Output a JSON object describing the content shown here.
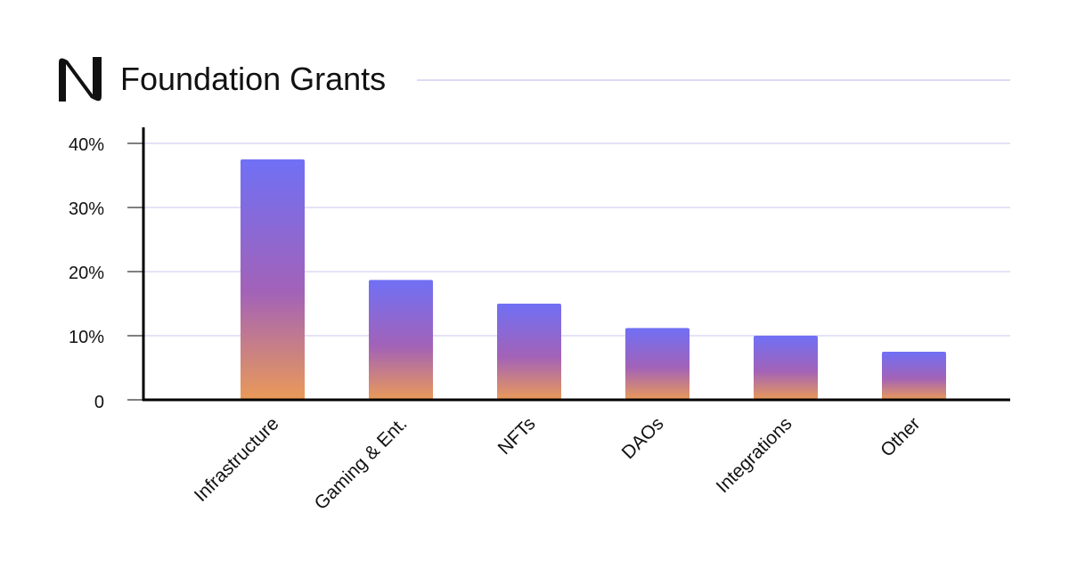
{
  "header": {
    "logo_icon": "near-logo-icon",
    "title": "Foundation Grants"
  },
  "colors": {
    "bar_top": "#7070f5",
    "bar_middle": "#a262b8",
    "bar_bottom": "#ea9a58",
    "gridline": "#dcdaf4",
    "axis": "#000000",
    "text": "#111111"
  },
  "chart_data": {
    "type": "bar",
    "title": "Foundation Grants",
    "xlabel": "",
    "ylabel": "",
    "categories": [
      "Infrastructure",
      "Gaming & Ent.",
      "NFTs",
      "DAOs",
      "Integrations",
      "Other"
    ],
    "values": [
      37.5,
      18.7,
      15.0,
      11.2,
      10.0,
      7.5
    ],
    "unit": "%",
    "ylim": [
      0,
      40
    ],
    "yticks": [
      0,
      10,
      20,
      30,
      40
    ],
    "ytick_labels": [
      "0",
      "10%",
      "20%",
      "30%",
      "40%"
    ],
    "grid": true,
    "legend": "none"
  }
}
